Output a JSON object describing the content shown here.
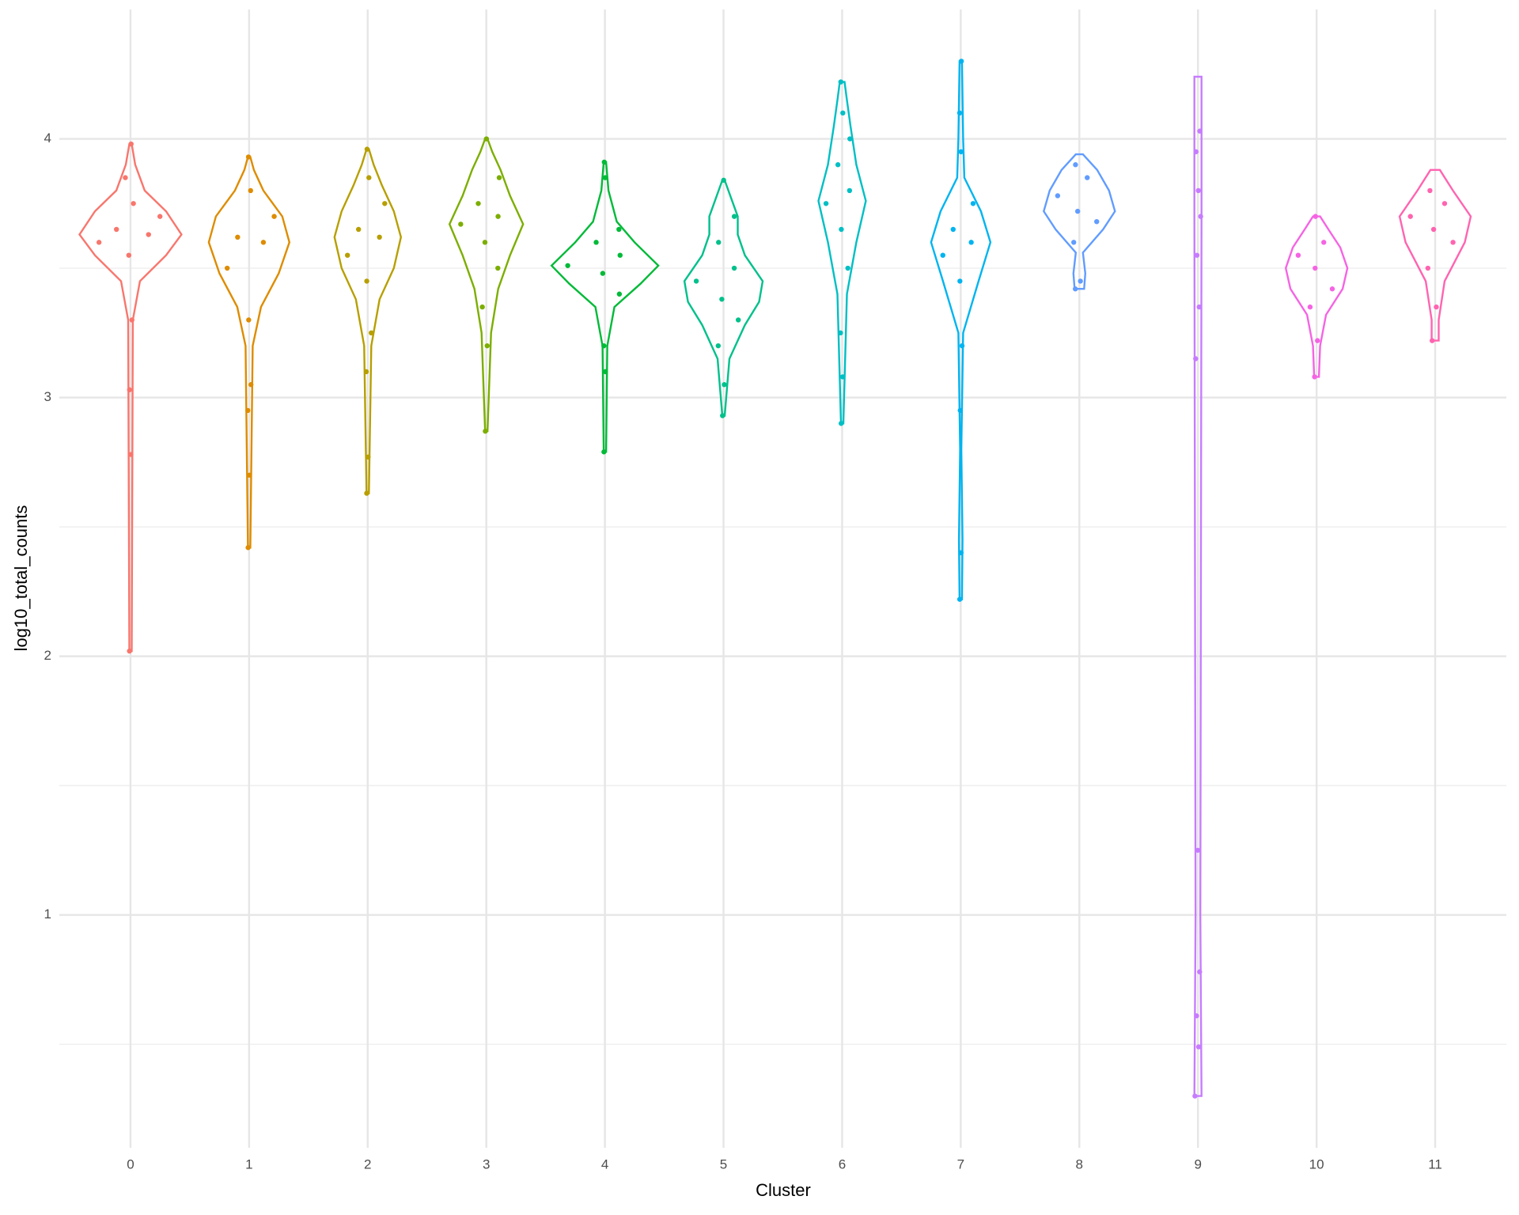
{
  "chart_data": {
    "type": "violin",
    "x_label": "Cluster",
    "y_label": "log10_total_counts",
    "categories": [
      "0",
      "1",
      "2",
      "3",
      "4",
      "5",
      "6",
      "7",
      "8",
      "9",
      "10",
      "11"
    ],
    "ylim": [
      0.1,
      4.5
    ],
    "yticks": [
      1,
      2,
      3,
      4
    ],
    "minor_yticks": [
      0.5,
      1.5,
      2.5,
      3.5
    ],
    "grid": true,
    "violins": [
      {
        "color": "#F8766D",
        "y": [
          2.02,
          3.3,
          3.45,
          3.55,
          3.63,
          3.72,
          3.8,
          3.9,
          3.98
        ],
        "width": [
          0.01,
          0.02,
          0.08,
          0.3,
          0.43,
          0.3,
          0.12,
          0.04,
          0.01
        ],
        "points": [
          2.02,
          2.78,
          3.03,
          3.3,
          3.55,
          3.6,
          3.63,
          3.65,
          3.7,
          3.75,
          3.85,
          3.98
        ]
      },
      {
        "color": "#DE8C00",
        "y": [
          2.42,
          3.2,
          3.35,
          3.48,
          3.6,
          3.7,
          3.8,
          3.88,
          3.93
        ],
        "width": [
          0.01,
          0.03,
          0.1,
          0.25,
          0.34,
          0.28,
          0.12,
          0.04,
          0.01
        ],
        "points": [
          2.42,
          2.7,
          2.95,
          3.05,
          3.3,
          3.5,
          3.6,
          3.62,
          3.7,
          3.8,
          3.93
        ]
      },
      {
        "color": "#B79F00",
        "y": [
          2.63,
          3.2,
          3.38,
          3.5,
          3.62,
          3.72,
          3.82,
          3.9,
          3.96
        ],
        "width": [
          0.01,
          0.03,
          0.1,
          0.22,
          0.28,
          0.22,
          0.12,
          0.05,
          0.01
        ],
        "points": [
          2.63,
          2.77,
          3.1,
          3.25,
          3.45,
          3.55,
          3.62,
          3.65,
          3.75,
          3.85,
          3.96
        ]
      },
      {
        "color": "#7CAE00",
        "y": [
          2.87,
          3.25,
          3.42,
          3.55,
          3.67,
          3.78,
          3.88,
          3.95,
          4.0
        ],
        "width": [
          0.01,
          0.04,
          0.1,
          0.2,
          0.31,
          0.2,
          0.12,
          0.05,
          0.01
        ],
        "points": [
          2.87,
          3.2,
          3.35,
          3.5,
          3.6,
          3.67,
          3.7,
          3.75,
          3.85,
          4.0
        ]
      },
      {
        "color": "#00BA38",
        "y": [
          2.79,
          3.2,
          3.35,
          3.44,
          3.51,
          3.6,
          3.68,
          3.8,
          3.91
        ],
        "width": [
          0.01,
          0.02,
          0.08,
          0.3,
          0.45,
          0.25,
          0.1,
          0.03,
          0.01
        ],
        "points": [
          2.79,
          3.1,
          3.2,
          3.4,
          3.48,
          3.51,
          3.55,
          3.6,
          3.65,
          3.85,
          3.91
        ]
      },
      {
        "color": "#00C08B",
        "y": [
          2.93,
          3.15,
          3.28,
          3.37,
          3.45,
          3.55,
          3.63,
          3.7,
          3.84
        ],
        "width": [
          0.01,
          0.05,
          0.18,
          0.3,
          0.33,
          0.18,
          0.12,
          0.12,
          0.01
        ],
        "points": [
          2.93,
          3.05,
          3.2,
          3.3,
          3.38,
          3.45,
          3.5,
          3.6,
          3.7,
          3.84
        ]
      },
      {
        "color": "#00BFC4",
        "y": [
          2.9,
          3.4,
          3.6,
          3.76,
          3.9,
          4.05,
          4.15,
          4.22
        ],
        "width": [
          0.01,
          0.04,
          0.12,
          0.2,
          0.12,
          0.07,
          0.04,
          0.02
        ],
        "points": [
          2.9,
          3.08,
          3.25,
          3.5,
          3.65,
          3.75,
          3.8,
          3.9,
          4.0,
          4.1,
          4.22
        ]
      },
      {
        "color": "#00B4F0",
        "y": [
          2.22,
          2.45,
          2.8,
          3.25,
          3.45,
          3.6,
          3.72,
          3.85,
          4.0,
          4.3
        ],
        "width": [
          0.01,
          0.015,
          0.005,
          0.02,
          0.15,
          0.25,
          0.17,
          0.03,
          0.02,
          0.01
        ],
        "points": [
          2.22,
          2.4,
          2.95,
          3.2,
          3.45,
          3.55,
          3.6,
          3.65,
          3.75,
          3.95,
          4.1,
          4.3
        ]
      },
      {
        "color": "#619CFF",
        "y": [
          3.42,
          3.48,
          3.56,
          3.65,
          3.72,
          3.8,
          3.88,
          3.94
        ],
        "width": [
          0.04,
          0.05,
          0.03,
          0.2,
          0.3,
          0.25,
          0.15,
          0.03
        ],
        "points": [
          3.42,
          3.45,
          3.6,
          3.68,
          3.72,
          3.78,
          3.85,
          3.9
        ]
      },
      {
        "color": "#C77CFF",
        "y": [
          0.3,
          1.0,
          3.7,
          4.24
        ],
        "width": [
          0.03,
          0.02,
          0.03,
          0.03
        ],
        "points": [
          0.3,
          0.49,
          0.61,
          0.78,
          1.25,
          3.15,
          3.35,
          3.55,
          3.7,
          3.8,
          3.95,
          4.03
        ]
      },
      {
        "color": "#F564E3",
        "y": [
          3.08,
          3.2,
          3.32,
          3.42,
          3.5,
          3.58,
          3.65,
          3.7
        ],
        "width": [
          0.02,
          0.03,
          0.08,
          0.22,
          0.26,
          0.2,
          0.1,
          0.03
        ],
        "points": [
          3.08,
          3.22,
          3.35,
          3.42,
          3.5,
          3.55,
          3.6,
          3.7
        ]
      },
      {
        "color": "#FF64B0",
        "y": [
          3.22,
          3.3,
          3.45,
          3.6,
          3.7,
          3.8,
          3.88
        ],
        "width": [
          0.03,
          0.03,
          0.08,
          0.25,
          0.3,
          0.15,
          0.04
        ],
        "points": [
          3.22,
          3.35,
          3.5,
          3.6,
          3.65,
          3.7,
          3.75,
          3.8
        ]
      }
    ]
  }
}
